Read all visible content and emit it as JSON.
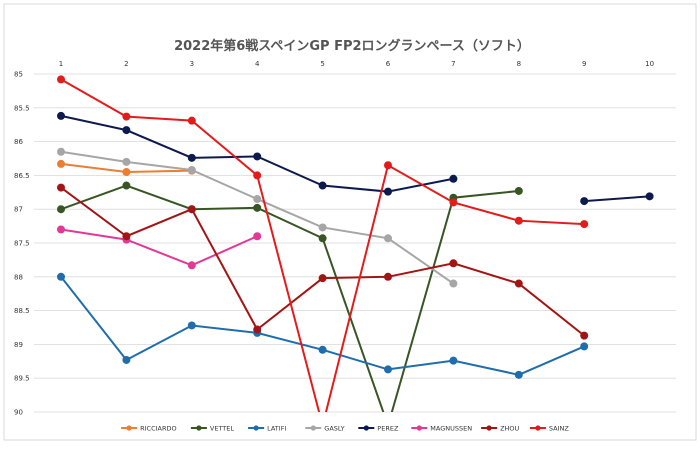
{
  "chart_data": {
    "type": "line",
    "title": "2022年第6戦スペインGP FP2ロングランペース（ソフト）",
    "x": [
      1,
      2,
      3,
      4,
      5,
      6,
      7,
      8,
      9,
      10
    ],
    "x_tick_labels": [
      "1",
      "2",
      "3",
      "4",
      "5",
      "6",
      "7",
      "8",
      "9",
      "10"
    ],
    "x_axis_position": "top",
    "y_axis": "inverted",
    "ylim": [
      85,
      90
    ],
    "y_ticks": [
      85,
      85.5,
      86,
      86.5,
      87,
      87.5,
      88,
      88.5,
      89,
      89.5,
      90
    ],
    "y_tick_labels": [
      "85",
      "85.5",
      "86",
      "86.5",
      "87",
      "87.5",
      "88",
      "88.5",
      "89",
      "89.5",
      "90"
    ],
    "grid": "horizontal",
    "legend_position": "bottom",
    "series": [
      {
        "name": "RICCIARDO",
        "color": "#ED7D31",
        "values": [
          86.33,
          86.45,
          86.43,
          null,
          null,
          null,
          null,
          null,
          null,
          null
        ]
      },
      {
        "name": "VETTEL",
        "color": "#375623",
        "values": [
          87.0,
          86.65,
          87.0,
          86.98,
          87.43,
          90.2,
          86.83,
          86.73,
          null,
          null
        ]
      },
      {
        "name": "LATIFI",
        "color": "#1F6DAD",
        "values": [
          88.0,
          89.23,
          88.72,
          88.83,
          89.08,
          89.37,
          89.24,
          89.45,
          89.03,
          null
        ]
      },
      {
        "name": "GASLY",
        "color": "#A6A6A6",
        "values": [
          86.15,
          86.3,
          86.42,
          86.85,
          87.27,
          87.43,
          88.1,
          null,
          null,
          null
        ]
      },
      {
        "name": "PEREZ",
        "color": "#0D1A4E",
        "values": [
          85.62,
          85.83,
          86.24,
          86.22,
          86.65,
          86.74,
          86.55,
          null,
          86.88,
          86.81
        ]
      },
      {
        "name": "MAGNUSSEN",
        "color": "#E43897",
        "values": [
          87.3,
          87.45,
          87.83,
          87.4,
          null,
          null,
          null,
          null,
          null,
          null
        ]
      },
      {
        "name": "ZHOU",
        "color": "#A31515",
        "values": [
          86.68,
          87.4,
          87.0,
          88.78,
          88.02,
          88.0,
          87.8,
          88.1,
          88.87,
          null
        ]
      },
      {
        "name": "SAINZ",
        "color": "#E31B1B",
        "values": [
          85.08,
          85.63,
          85.69,
          86.5,
          90.2,
          86.35,
          86.9,
          87.17,
          87.22,
          null
        ]
      }
    ]
  },
  "colors": {
    "gridline": "#D9D9D9",
    "border": "#D9D9D9",
    "text": "#333333",
    "title": "#555555"
  }
}
